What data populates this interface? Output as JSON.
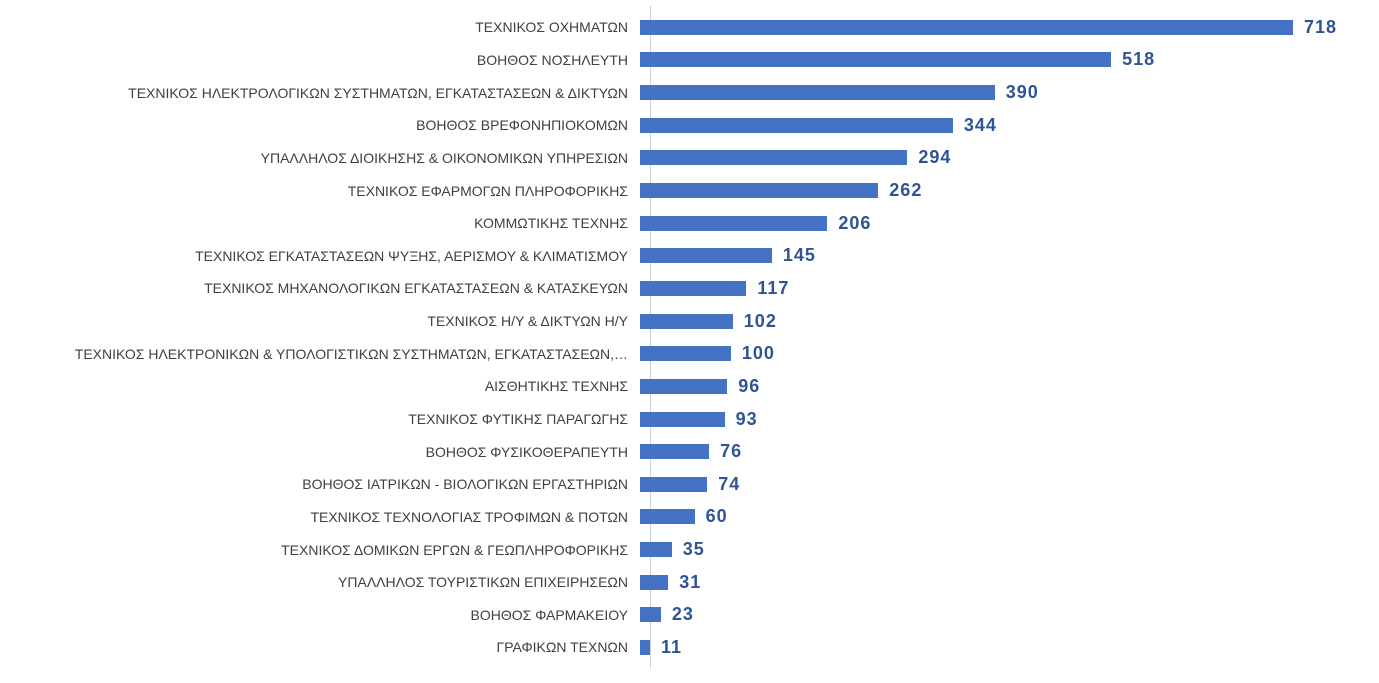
{
  "chart_data": {
    "type": "bar",
    "orientation": "horizontal",
    "title": "",
    "xlabel": "",
    "ylabel": "",
    "grid": false,
    "legend": "none",
    "value_labels_shown": true,
    "xlim": [
      0,
      790
    ],
    "bar_color": "#4472C4",
    "value_label_color": "#2F5496",
    "category_label_color": "#404040",
    "axis_line_color": "#D0D0D0",
    "categories": [
      "ΤΕΧΝΙΚΟΣ ΟΧΗΜΑΤΩΝ",
      "ΒΟΗΘΟΣ ΝΟΣΗΛΕΥΤΗ",
      "ΤΕΧΝΙΚΟΣ ΗΛΕΚΤΡΟΛΟΓΙΚΩΝ ΣΥΣΤΗΜΑΤΩΝ, ΕΓΚΑΤΑΣΤΑΣΕΩΝ & ΔΙΚΤΥΩΝ",
      "ΒΟΗΘΟΣ ΒΡΕΦΟΝΗΠΙΟΚΟΜΩΝ",
      "ΥΠΑΛΛΗΛΟΣ ΔΙΟΙΚΗΣΗΣ & ΟΙΚΟΝΟΜΙΚΩΝ ΥΠΗΡΕΣΙΩΝ",
      "ΤΕΧΝΙΚΟΣ ΕΦΑΡΜΟΓΩΝ ΠΛΗΡΟΦΟΡΙΚΗΣ",
      "ΚΟΜΜΩΤΙΚΗΣ ΤΕΧΝΗΣ",
      "ΤΕΧΝΙΚΟΣ ΕΓΚΑΤΑΣΤΑΣΕΩΝ ΨΥΞΗΣ, ΑΕΡΙΣΜΟΥ & ΚΛΙΜΑΤΙΣΜΟΥ",
      "ΤΕΧΝΙΚΟΣ ΜΗΧΑΝΟΛΟΓΙΚΩΝ ΕΓΚΑΤΑΣΤΑΣΕΩΝ & ΚΑΤΑΣΚΕΥΩΝ",
      "ΤΕΧΝΙΚΟΣ Η/Υ & ΔΙΚΤΥΩΝ Η/Υ",
      "ΤΕΧΝΙΚΟΣ ΗΛΕΚΤΡΟΝΙΚΩΝ & ΥΠΟΛΟΓΙΣΤΙΚΩΝ ΣΥΣΤΗΜΑΤΩΝ, ΕΓΚΑΤΑΣΤΑΣΕΩΝ,…",
      "ΑΙΣΘΗΤΙΚΗΣ ΤΕΧΝΗΣ",
      "ΤΕΧΝΙΚΟΣ ΦΥΤΙΚΗΣ ΠΑΡΑΓΩΓΗΣ",
      "ΒΟΗΘΟΣ ΦΥΣΙΚΟΘΕΡΑΠΕΥΤΗ",
      "ΒΟΗΘΟΣ ΙΑΤΡΙΚΩΝ - ΒΙΟΛΟΓΙΚΩΝ ΕΡΓΑΣΤΗΡΙΩΝ",
      "ΤΕΧΝΙΚΟΣ ΤΕΧΝΟΛΟΓΙΑΣ ΤΡΟΦΙΜΩΝ & ΠΟΤΩΝ",
      "ΤΕΧΝΙΚΟΣ ΔΟΜΙΚΩΝ ΕΡΓΩΝ & ΓΕΩΠΛΗΡΟΦΟΡΙΚΗΣ",
      "ΥΠΑΛΛΗΛΟΣ ΤΟΥΡΙΣΤΙΚΩΝ ΕΠΙΧΕΙΡΗΣΕΩΝ",
      "ΒΟΗΘΟΣ ΦΑΡΜΑΚΕΙΟΥ",
      "ΓΡΑΦΙΚΩΝ ΤΕΧΝΩΝ"
    ],
    "values": [
      718,
      518,
      390,
      344,
      294,
      262,
      206,
      145,
      117,
      102,
      100,
      96,
      93,
      76,
      74,
      60,
      35,
      31,
      23,
      11
    ]
  }
}
